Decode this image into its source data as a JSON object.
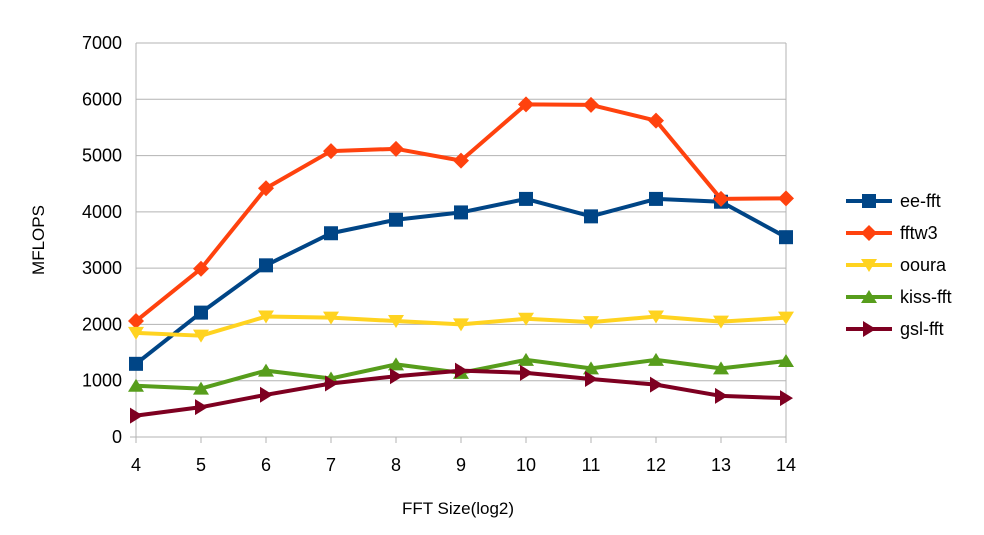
{
  "chart_data": {
    "type": "line",
    "title": "",
    "xlabel": "FFT Size(log2)",
    "ylabel": "MFLOPS",
    "x": [
      4,
      5,
      6,
      7,
      8,
      9,
      10,
      11,
      12,
      13,
      14
    ],
    "xlim": [
      4,
      14
    ],
    "ylim": [
      0,
      7000
    ],
    "yticks": [
      0,
      1000,
      2000,
      3000,
      4000,
      5000,
      6000,
      7000
    ],
    "grid": "horizontal",
    "legend_position": "right",
    "series": [
      {
        "name": "ee-fft",
        "color": "#004586",
        "marker": "square",
        "values": [
          1300,
          2210,
          3050,
          3620,
          3860,
          3990,
          4230,
          3920,
          4230,
          4180,
          3550
        ]
      },
      {
        "name": "fftw3",
        "color": "#ff420e",
        "marker": "diamond",
        "values": [
          2060,
          2990,
          4420,
          5080,
          5120,
          4910,
          5910,
          5900,
          5620,
          4230,
          4240
        ]
      },
      {
        "name": "ooura",
        "color": "#ffd320",
        "marker": "triangle-down",
        "values": [
          1850,
          1800,
          2140,
          2120,
          2060,
          2000,
          2100,
          2040,
          2140,
          2050,
          2120
        ]
      },
      {
        "name": "kiss-fft",
        "color": "#579d1c",
        "marker": "triangle-up",
        "values": [
          910,
          860,
          1180,
          1040,
          1290,
          1140,
          1370,
          1220,
          1370,
          1220,
          1350
        ]
      },
      {
        "name": "gsl-fft",
        "color": "#7e0021",
        "marker": "triangle-right",
        "values": [
          380,
          530,
          750,
          950,
          1080,
          1180,
          1140,
          1030,
          930,
          730,
          690
        ]
      }
    ]
  }
}
